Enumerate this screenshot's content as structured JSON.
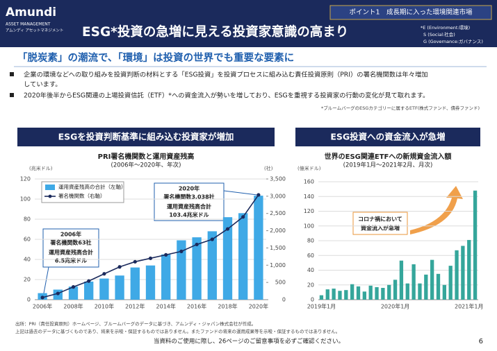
{
  "header": {
    "logo": "Amundi",
    "logo_sub": "ASSET MANAGEMENT",
    "logo_jp": "アムンディ アセットマネジメント",
    "tag": "ポイント1　成長期に入った環境関連市場",
    "title": "ESG*投資の急増に見える投資家意識の高まり",
    "esg_notes": [
      "*E (Environment:環境)",
      "S (Social:社会)",
      "G (Governance:ガバナンス)"
    ]
  },
  "subheading": "「脱炭素」の潮流で、「環境」は投資の世界でも重要な要素に",
  "bullets": [
    [
      "企業の環境などへの取り組みを投資判断の材料とする「ESG投資」を投資プロセスに組み込む責任投資原則（PRI）の署名機関数は年々増加",
      "しています。"
    ],
    [
      "2020年後半からESG関連の上場投資信託（ETF）*への資金流入が勢いを増しており、ESGを重視する投資家の行動の変化が見て取れます。"
    ]
  ],
  "note": "*ブルームバーグのESGカテゴリーに属するETF(株式ファンド、債券ファンド)",
  "sections": [
    "ESGを投資判断基準に組み込む投資家が増加",
    "ESG投資への資金流入が急増"
  ],
  "chart_data": [
    {
      "type": "bar",
      "title": "PRI署名機関数と運用資産残高",
      "subtitle": "(2006年～2020年、年次)",
      "y_label": "(兆米ドル)",
      "y2_label": "(社)",
      "categories": [
        "2006年",
        null,
        "2008年",
        null,
        "2010年",
        null,
        "2012年",
        null,
        "2014年",
        null,
        "2016年",
        null,
        "2018年",
        null,
        "2020年"
      ],
      "series": [
        {
          "name": "運用資産残高の合計（左軸）",
          "color": "#3fa9e6",
          "values": [
            6.5,
            10,
            13,
            18,
            21,
            24,
            32,
            34,
            45,
            59,
            62,
            68,
            82,
            86,
            103.4
          ]
        },
        {
          "name": "署名機関数（右軸）",
          "color": "#1b2a5c",
          "axis": "y2",
          "type": "line",
          "values": [
            63,
            180,
            370,
            540,
            750,
            950,
            1100,
            1200,
            1300,
            1400,
            1600,
            1750,
            2050,
            2400,
            3038
          ]
        }
      ],
      "ylim": [
        0,
        120
      ],
      "yticks": [
        0,
        20,
        40,
        60,
        80,
        100,
        120
      ],
      "y2lim": [
        0,
        3500
      ],
      "y2ticks": [
        0,
        500,
        {
          "value": 1000,
          "label": "1,000"
        },
        {
          "value": 1500,
          "label": "1,500"
        },
        {
          "value": 2000,
          "label": "2,000"
        },
        {
          "value": 2500,
          "label": "2,500"
        },
        {
          "value": 3000,
          "label": "3,000"
        },
        {
          "value": 3500,
          "label": "3,500"
        }
      ],
      "grid": true,
      "annotations": [
        [
          "2006年",
          "署名機関数63社",
          "運用資産残高合計",
          "6.5兆米ドル"
        ],
        [
          "2020年",
          "署名機関数3,038社",
          "運用資産残高合計",
          "103.4兆米ドル"
        ]
      ]
    },
    {
      "type": "bar",
      "title": "世界のESG関連ETFへの新規資金流入額",
      "subtitle": "(2019年1月～2021年2月、月次)",
      "y_label": "(億米ドル)",
      "categories": [
        "2019年1月",
        null,
        null,
        null,
        null,
        null,
        null,
        null,
        null,
        null,
        null,
        null,
        "2020年1月",
        null,
        null,
        null,
        null,
        null,
        null,
        null,
        null,
        null,
        null,
        null,
        "2021年1月",
        null
      ],
      "series": [
        {
          "color": "#35a69b",
          "values": [
            6,
            14,
            15,
            12,
            13,
            21,
            18,
            11,
            19,
            17,
            16,
            20,
            27,
            53,
            22,
            48,
            22,
            34,
            54,
            35,
            20,
            46,
            67,
            73,
            81,
            148
          ]
        }
      ],
      "ylim": [
        0,
        160
      ],
      "yticks": [
        0,
        20,
        40,
        60,
        80,
        100,
        120,
        140,
        160
      ],
      "grid": true,
      "annotations": [
        [
          "コロナ禍において",
          "資金流入が急増"
        ]
      ]
    }
  ],
  "footer": {
    "sources": [
      "出所：PRI（責任投資原則）ホームページ、ブルームバーグのデータに基づき、アムンディ・ジャパン株式会社が作成。",
      "上記は過去のデータに基づくものであり、将来を示唆・保証するものではありません。またファンドの将来の運用成果等を示唆・保証するものではありません。"
    ],
    "caution": "当資料のご使用に際し、26ページのご留意事項を必ずご確認ください。",
    "page": "6"
  }
}
